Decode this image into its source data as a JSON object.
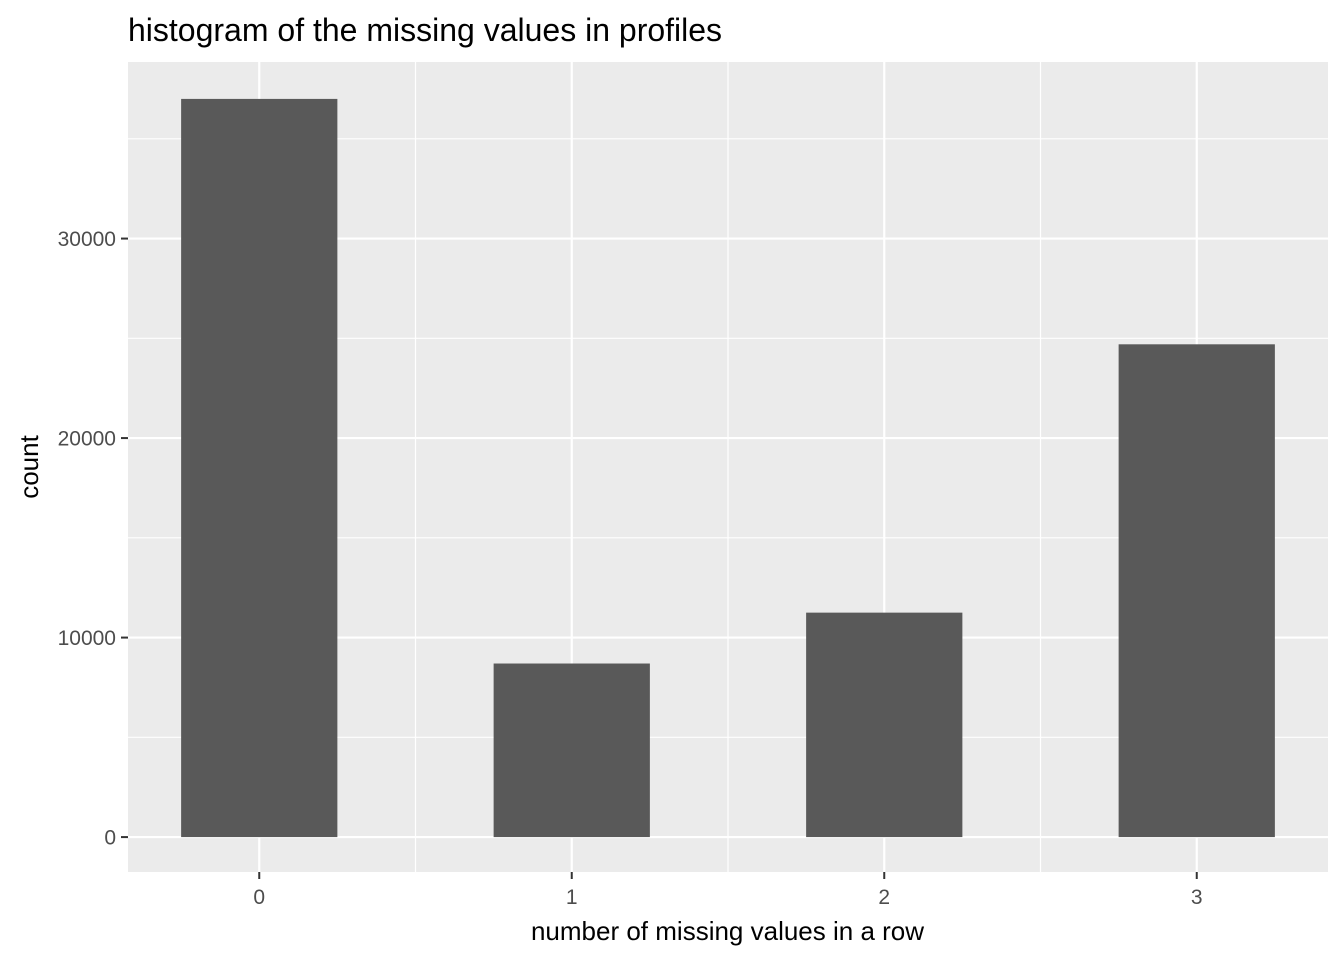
{
  "chart_data": {
    "type": "bar",
    "title": "histogram of the missing values in profiles",
    "xlabel": "number of missing values in a row",
    "ylabel": "count",
    "categories": [
      "0",
      "1",
      "2",
      "3"
    ],
    "values": [
      37000,
      8700,
      11250,
      24700
    ],
    "yticks": [
      0,
      10000,
      20000,
      30000
    ],
    "ytick_labels": [
      "0",
      "10000",
      "20000",
      "30000"
    ],
    "ylim": [
      -1750,
      38850
    ],
    "xlim": [
      -0.42,
      3.42
    ],
    "grid": true,
    "legend": "none",
    "colors": {
      "bar": "#595959",
      "panel": "#ebebeb",
      "grid_major": "#ffffff",
      "tick_text": "#4d4d4d",
      "tick_mark": "#333333"
    }
  }
}
